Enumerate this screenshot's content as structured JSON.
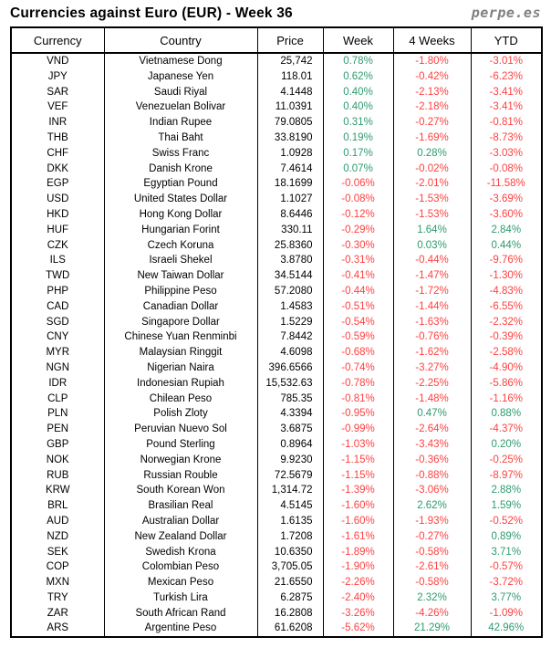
{
  "header": {
    "title": "Currencies against Euro (EUR) - Week 36",
    "logo": "perpe.es"
  },
  "colors": {
    "positive": "#2E9B6F",
    "negative": "#FF4040",
    "logo_gray": "#808080",
    "border": "#000000"
  },
  "table": {
    "columns": [
      "Currency",
      "Country",
      "Price",
      "Week",
      "4 Weeks",
      "YTD"
    ],
    "rows": [
      [
        "VND",
        "Vietnamese Dong",
        "25,742",
        "0.78%",
        "-1.80%",
        "-3.01%"
      ],
      [
        "JPY",
        "Japanese Yen",
        "118.01",
        "0.62%",
        "-0.42%",
        "-6.23%"
      ],
      [
        "SAR",
        "Saudi Riyal",
        "4.1448",
        "0.40%",
        "-2.13%",
        "-3.41%"
      ],
      [
        "VEF",
        "Venezuelan Bolivar",
        "11.0391",
        "0.40%",
        "-2.18%",
        "-3.41%"
      ],
      [
        "INR",
        "Indian Rupee",
        "79.0805",
        "0.31%",
        "-0.27%",
        "-0.81%"
      ],
      [
        "THB",
        "Thai Baht",
        "33.8190",
        "0.19%",
        "-1.69%",
        "-8.73%"
      ],
      [
        "CHF",
        "Swiss Franc",
        "1.0928",
        "0.17%",
        "0.28%",
        "-3.03%"
      ],
      [
        "DKK",
        "Danish Krone",
        "7.4614",
        "0.07%",
        "-0.02%",
        "-0.08%"
      ],
      [
        "EGP",
        "Egyptian Pound",
        "18.1699",
        "-0.06%",
        "-2.01%",
        "-11.58%"
      ],
      [
        "USD",
        "United States Dollar",
        "1.1027",
        "-0.08%",
        "-1.53%",
        "-3.69%"
      ],
      [
        "HKD",
        "Hong Kong Dollar",
        "8.6446",
        "-0.12%",
        "-1.53%",
        "-3.60%"
      ],
      [
        "HUF",
        "Hungarian Forint",
        "330.11",
        "-0.29%",
        "1.64%",
        "2.84%"
      ],
      [
        "CZK",
        "Czech Koruna",
        "25.8360",
        "-0.30%",
        "0.03%",
        "0.44%"
      ],
      [
        "ILS",
        "Israeli Shekel",
        "3.8780",
        "-0.31%",
        "-0.44%",
        "-9.76%"
      ],
      [
        "TWD",
        "New Taiwan Dollar",
        "34.5144",
        "-0.41%",
        "-1.47%",
        "-1.30%"
      ],
      [
        "PHP",
        "Philippine Peso",
        "57.2080",
        "-0.44%",
        "-1.72%",
        "-4.83%"
      ],
      [
        "CAD",
        "Canadian Dollar",
        "1.4583",
        "-0.51%",
        "-1.44%",
        "-6.55%"
      ],
      [
        "SGD",
        "Singapore Dollar",
        "1.5229",
        "-0.54%",
        "-1.63%",
        "-2.32%"
      ],
      [
        "CNY",
        "Chinese Yuan Renminbi",
        "7.8442",
        "-0.59%",
        "-0.76%",
        "-0.39%"
      ],
      [
        "MYR",
        "Malaysian Ringgit",
        "4.6098",
        "-0.68%",
        "-1.62%",
        "-2.58%"
      ],
      [
        "NGN",
        "Nigerian Naira",
        "396.6566",
        "-0.74%",
        "-3.27%",
        "-4.90%"
      ],
      [
        "IDR",
        "Indonesian Rupiah",
        "15,532.63",
        "-0.78%",
        "-2.25%",
        "-5.86%"
      ],
      [
        "CLP",
        "Chilean Peso",
        "785.35",
        "-0.81%",
        "-1.48%",
        "-1.16%"
      ],
      [
        "PLN",
        "Polish Zloty",
        "4.3394",
        "-0.95%",
        "0.47%",
        "0.88%"
      ],
      [
        "PEN",
        "Peruvian Nuevo Sol",
        "3.6875",
        "-0.99%",
        "-2.64%",
        "-4.37%"
      ],
      [
        "GBP",
        "Pound Sterling",
        "0.8964",
        "-1.03%",
        "-3.43%",
        "0.20%"
      ],
      [
        "NOK",
        "Norwegian Krone",
        "9.9230",
        "-1.15%",
        "-0.36%",
        "-0.25%"
      ],
      [
        "RUB",
        "Russian Rouble",
        "72.5679",
        "-1.15%",
        "-0.88%",
        "-8.97%"
      ],
      [
        "KRW",
        "South Korean Won",
        "1,314.72",
        "-1.39%",
        "-3.06%",
        "2.88%"
      ],
      [
        "BRL",
        "Brasilian Real",
        "4.5145",
        "-1.60%",
        "2.62%",
        "1.59%"
      ],
      [
        "AUD",
        "Australian Dollar",
        "1.6135",
        "-1.60%",
        "-1.93%",
        "-0.52%"
      ],
      [
        "NZD",
        "New Zealand Dollar",
        "1.7208",
        "-1.61%",
        "-0.27%",
        "0.89%"
      ],
      [
        "SEK",
        "Swedish Krona",
        "10.6350",
        "-1.89%",
        "-0.58%",
        "3.71%"
      ],
      [
        "COP",
        "Colombian Peso",
        "3,705.05",
        "-1.90%",
        "-2.61%",
        "-0.57%"
      ],
      [
        "MXN",
        "Mexican Peso",
        "21.6550",
        "-2.26%",
        "-0.58%",
        "-3.72%"
      ],
      [
        "TRY",
        "Turkish Lira",
        "6.2875",
        "-2.40%",
        "2.32%",
        "3.77%"
      ],
      [
        "ZAR",
        "South African Rand",
        "16.2808",
        "-3.26%",
        "-4.26%",
        "-1.09%"
      ],
      [
        "ARS",
        "Argentine Peso",
        "61.6208",
        "-5.62%",
        "21.29%",
        "42.96%"
      ]
    ]
  }
}
